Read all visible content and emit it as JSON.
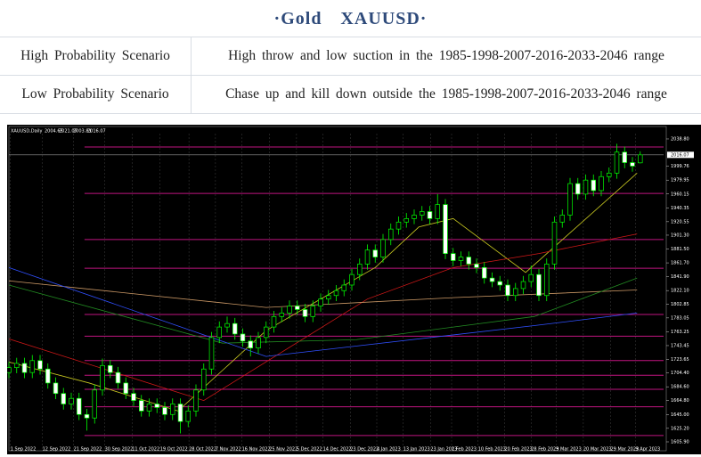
{
  "header": {
    "title": "·Gold　XAUUSD·"
  },
  "table": {
    "rows": [
      [
        "High Probability Scenario",
        "High throw and low suction in the 1985-1998-2007-2016-2033-2046 range"
      ],
      [
        "Low Probability Scenario",
        "Chase up and kill down outside the 1985-1998-2007-2016-2033-2046 range"
      ]
    ]
  },
  "chart_data": {
    "type": "candlestick",
    "title": "XAUUSD,Daily",
    "bull_color": "#00ff00",
    "bear_color": "#ffffff",
    "background": "#000000",
    "open": [
      1705,
      1712,
      1718,
      1705,
      1722,
      1710,
      1690,
      1675,
      1660,
      1668,
      1645,
      1640,
      1680,
      1715,
      1705,
      1690,
      1675,
      1665,
      1650,
      1660,
      1655,
      1645,
      1660,
      1635,
      1650,
      1680,
      1710,
      1755,
      1770,
      1775,
      1760,
      1750,
      1740,
      1755,
      1770,
      1785,
      1790,
      1800,
      1795,
      1785,
      1800,
      1810,
      1815,
      1822,
      1830,
      1845,
      1860,
      1880,
      1870,
      1895,
      1910,
      1920,
      1925,
      1930,
      1935,
      1925,
      1945,
      1875,
      1865,
      1870,
      1860,
      1855,
      1840,
      1835,
      1830,
      1815,
      1825,
      1835,
      1845,
      1815,
      1860,
      1920,
      1930,
      1975,
      1960,
      1980,
      1965,
      1985,
      1990,
      2020,
      2005,
      2004.65
    ],
    "high": [
      1720,
      1726,
      1726,
      1730,
      1730,
      1718,
      1698,
      1683,
      1676,
      1676,
      1653,
      1688,
      1725,
      1723,
      1713,
      1698,
      1683,
      1673,
      1668,
      1668,
      1663,
      1668,
      1668,
      1658,
      1688,
      1718,
      1763,
      1778,
      1785,
      1783,
      1768,
      1758,
      1763,
      1778,
      1793,
      1798,
      1808,
      1808,
      1803,
      1808,
      1818,
      1823,
      1830,
      1838,
      1853,
      1868,
      1888,
      1888,
      1903,
      1918,
      1928,
      1933,
      1938,
      1943,
      1943,
      1960,
      1953,
      1883,
      1878,
      1878,
      1868,
      1863,
      1848,
      1843,
      1838,
      1833,
      1843,
      1858,
      1853,
      1868,
      1928,
      1938,
      1983,
      1983,
      1988,
      1988,
      1993,
      1998,
      2032,
      2028,
      2013,
      2021.07
    ],
    "low": [
      1697,
      1704,
      1697,
      1697,
      1702,
      1682,
      1667,
      1652,
      1652,
      1637,
      1622,
      1632,
      1672,
      1697,
      1682,
      1667,
      1657,
      1642,
      1642,
      1647,
      1637,
      1637,
      1618,
      1627,
      1642,
      1672,
      1702,
      1747,
      1762,
      1752,
      1742,
      1728,
      1732,
      1747,
      1762,
      1777,
      1782,
      1787,
      1777,
      1777,
      1792,
      1802,
      1807,
      1814,
      1822,
      1837,
      1852,
      1862,
      1862,
      1887,
      1902,
      1912,
      1917,
      1922,
      1917,
      1917,
      1867,
      1857,
      1857,
      1852,
      1847,
      1832,
      1827,
      1822,
      1807,
      1807,
      1817,
      1827,
      1807,
      1807,
      1852,
      1912,
      1922,
      1952,
      1952,
      1957,
      1957,
      1977,
      1982,
      1997,
      1992,
      2003.81
    ],
    "close": [
      1712,
      1718,
      1705,
      1722,
      1710,
      1690,
      1675,
      1660,
      1668,
      1645,
      1640,
      1680,
      1715,
      1705,
      1690,
      1675,
      1665,
      1650,
      1660,
      1655,
      1645,
      1660,
      1635,
      1650,
      1680,
      1710,
      1755,
      1770,
      1775,
      1760,
      1750,
      1740,
      1755,
      1770,
      1785,
      1790,
      1800,
      1795,
      1785,
      1800,
      1810,
      1815,
      1822,
      1830,
      1845,
      1860,
      1880,
      1870,
      1895,
      1910,
      1920,
      1925,
      1930,
      1935,
      1925,
      1945,
      1875,
      1865,
      1870,
      1860,
      1855,
      1840,
      1835,
      1830,
      1815,
      1825,
      1835,
      1845,
      1815,
      1860,
      1920,
      1930,
      1975,
      1960,
      1980,
      1965,
      1985,
      1990,
      2020,
      2005,
      2000,
      2016.07
    ],
    "lines": [
      {
        "color": "#c8c820",
        "x": [
          0,
          10.3,
          21.7,
          33,
          47,
          52.6,
          57,
          66.3,
          80.6
        ],
        "values": [
          1720,
          1690,
          1650,
          1765,
          1855,
          1913,
          1925,
          1848,
          1990
        ]
      },
      {
        "color": "#d01818",
        "x": [
          0,
          25,
          46,
          57,
          68,
          80.6
        ],
        "values": [
          1753,
          1665,
          1810,
          1855,
          1875,
          1903
        ]
      },
      {
        "color": "#cc9966",
        "x": [
          0,
          33,
          57,
          80.6
        ],
        "values": [
          1836,
          1798,
          1812,
          1823
        ]
      },
      {
        "color": "#228b22",
        "x": [
          0,
          27.4,
          44.6,
          67.4,
          80.6
        ],
        "values": [
          1830,
          1747,
          1752,
          1785,
          1840
        ]
      },
      {
        "color": "#3050ff",
        "x": [
          0,
          33,
          67.4,
          80.6
        ],
        "values": [
          1855,
          1728,
          1772,
          1790
        ]
      }
    ],
    "levels": [
      2027.3,
      1961,
      1895,
      1854,
      1788,
      1757,
      1722,
      1701,
      1681,
      1656,
      1615
    ],
    "level_color": "#c0147f",
    "xlim": [
      0,
      84
    ],
    "ylim": [
      1600.8,
      2051.5
    ],
    "grid": true,
    "xticks": [
      {
        "value": 0.2,
        "label": "1 Sep 2022"
      },
      {
        "value": 4.3,
        "label": "12 Sep 2022"
      },
      {
        "value": 8.3,
        "label": "21 Sep 2022"
      },
      {
        "value": 12.3,
        "label": "30 Sep 2022"
      },
      {
        "value": 15.8,
        "label": "11 Oct 2022"
      },
      {
        "value": 19.4,
        "label": "19 Oct 2022"
      },
      {
        "value": 23.1,
        "label": "28 Oct 2022"
      },
      {
        "value": 26.5,
        "label": "7 Nov 2022"
      },
      {
        "value": 29.9,
        "label": "16 Nov 2022"
      },
      {
        "value": 33.4,
        "label": "25 Nov 2022"
      },
      {
        "value": 36.9,
        "label": "5 Dec 2022"
      },
      {
        "value": 40.3,
        "label": "14 Dec 2022"
      },
      {
        "value": 43.8,
        "label": "23 Dec 2022"
      },
      {
        "value": 47.2,
        "label": "4 Jan 2023"
      },
      {
        "value": 50.6,
        "label": "13 Jan 2023"
      },
      {
        "value": 54.1,
        "label": "23 Jan 2023"
      },
      {
        "value": 56.8,
        "label": "1 Feb 2023"
      },
      {
        "value": 60.2,
        "label": "10 Feb 2023"
      },
      {
        "value": 63.6,
        "label": "20 Feb 2023"
      },
      {
        "value": 67,
        "label": "28 Feb 2023"
      },
      {
        "value": 70.2,
        "label": "9 Mar 2023"
      },
      {
        "value": 73.7,
        "label": "20 Mar 2023"
      },
      {
        "value": 77.2,
        "label": "29 Mar 2023"
      },
      {
        "value": 80.4,
        "label": "9 Apr 2023"
      }
    ],
    "yticks": [
      {
        "value": 2038.8,
        "label": "2038.80"
      },
      {
        "value": 1999.76,
        "label": "1999.76"
      },
      {
        "value": 1979.95,
        "label": "1979.95"
      },
      {
        "value": 1960.15,
        "label": "1960.15"
      },
      {
        "value": 1940.35,
        "label": "1940.35"
      },
      {
        "value": 1920.55,
        "label": "1920.55"
      },
      {
        "value": 1901.3,
        "label": "1901.30"
      },
      {
        "value": 1881.5,
        "label": "1881.50"
      },
      {
        "value": 1861.7,
        "label": "1861.70"
      },
      {
        "value": 1841.9,
        "label": "1841.90"
      },
      {
        "value": 1822.1,
        "label": "1822.10"
      },
      {
        "value": 1802.85,
        "label": "1802.85"
      },
      {
        "value": 1783.05,
        "label": "1783.05"
      },
      {
        "value": 1763.25,
        "label": "1763.25"
      },
      {
        "value": 1743.45,
        "label": "1743.45"
      },
      {
        "value": 1723.65,
        "label": "1723.65"
      },
      {
        "value": 1704.4,
        "label": "1704.40"
      },
      {
        "value": 1684.6,
        "label": "1684.60"
      },
      {
        "value": 1664.8,
        "label": "1664.80"
      },
      {
        "value": 1645,
        "label": "1645.00"
      },
      {
        "value": 1625.2,
        "label": "1625.20"
      },
      {
        "value": 1605.9,
        "label": "1605.90"
      }
    ]
  }
}
